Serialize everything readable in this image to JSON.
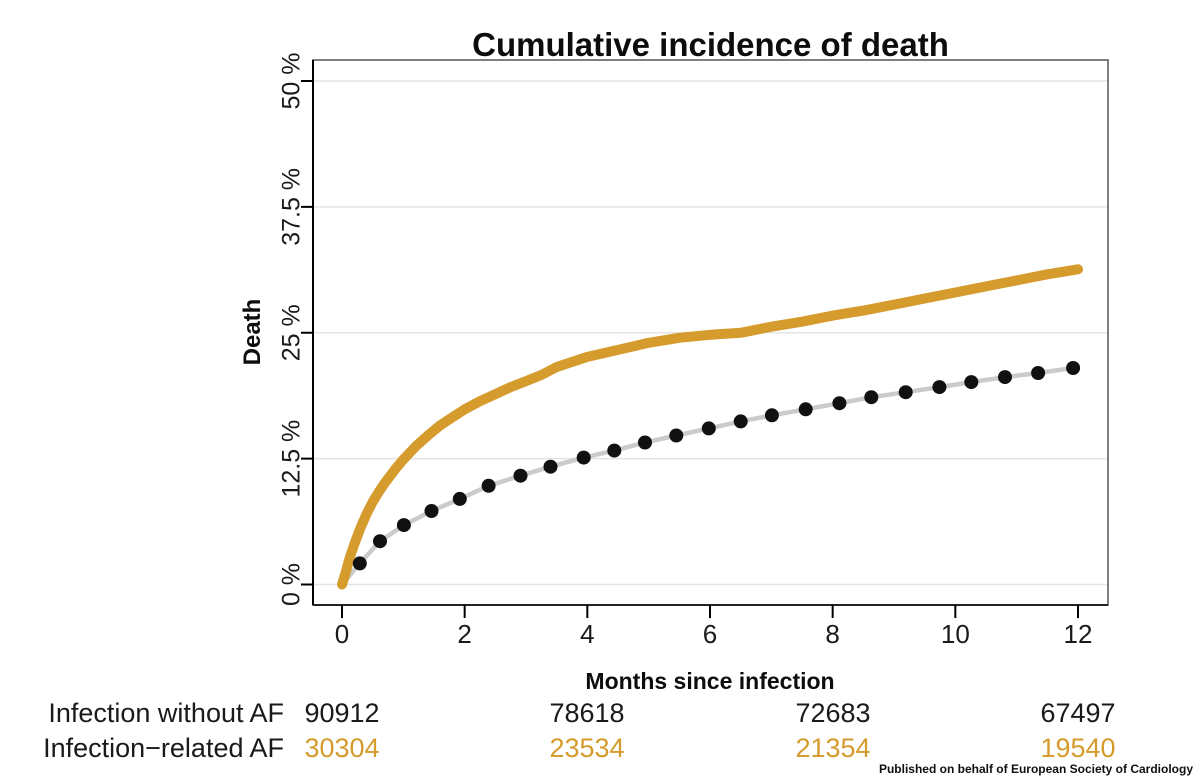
{
  "footer_note": "Published on behalf of European Society of Cardiology",
  "colors": {
    "af_orange": "#D59B2D",
    "no_af_black": "#111111",
    "connector_gray": "#cbcbcb",
    "grid_gray": "#e4e4e4",
    "box_gray": "#555555",
    "axis_black": "#000000",
    "text_dark": "#1a1a1a"
  },
  "chart_data": {
    "type": "line",
    "title": "Cumulative incidence of death",
    "xlabel": "Months since infection",
    "ylabel": "Death",
    "xlim": [
      0,
      12
    ],
    "ylim": [
      0,
      50
    ],
    "y_unit": "%",
    "grid": "horizontal-only",
    "legend_position": "none",
    "xticks": [
      0,
      2,
      4,
      6,
      8,
      10,
      12
    ],
    "yticks": [
      {
        "value": 0,
        "label": "0 %"
      },
      {
        "value": 12.5,
        "label": "12.5 %"
      },
      {
        "value": 25,
        "label": "25 %"
      },
      {
        "value": 37.5,
        "label": "37.5 %"
      },
      {
        "value": 50,
        "label": "50 %"
      }
    ],
    "series": [
      {
        "name": "Infection-related AF",
        "style": "thick-solid-line",
        "color": "#D59B2D",
        "points": [
          [
            0,
            0
          ],
          [
            0.05,
            1.0
          ],
          [
            0.1,
            2.1
          ],
          [
            0.15,
            3.1
          ],
          [
            0.2,
            4.0
          ],
          [
            0.3,
            5.6
          ],
          [
            0.4,
            7.0
          ],
          [
            0.5,
            8.2
          ],
          [
            0.6,
            9.2
          ],
          [
            0.7,
            10.1
          ],
          [
            0.8,
            10.9
          ],
          [
            0.9,
            11.7
          ],
          [
            1.0,
            12.4
          ],
          [
            1.2,
            13.7
          ],
          [
            1.4,
            14.8
          ],
          [
            1.6,
            15.8
          ],
          [
            1.8,
            16.6
          ],
          [
            2.0,
            17.4
          ],
          [
            2.25,
            18.2
          ],
          [
            2.5,
            18.9
          ],
          [
            2.75,
            19.6
          ],
          [
            3.0,
            20.2
          ],
          [
            3.25,
            20.8
          ],
          [
            3.5,
            21.6
          ],
          [
            4.0,
            22.6
          ],
          [
            4.5,
            23.3
          ],
          [
            5.0,
            24.0
          ],
          [
            5.5,
            24.5
          ],
          [
            6.0,
            24.8
          ],
          [
            6.5,
            25.0
          ],
          [
            7.0,
            25.6
          ],
          [
            7.5,
            26.1
          ],
          [
            8.0,
            26.7
          ],
          [
            8.5,
            27.2
          ],
          [
            9.0,
            27.8
          ],
          [
            9.5,
            28.4
          ],
          [
            10.0,
            29.0
          ],
          [
            10.5,
            29.6
          ],
          [
            11.0,
            30.2
          ],
          [
            11.5,
            30.8
          ],
          [
            12.0,
            31.3
          ]
        ]
      },
      {
        "name": "Infection without AF",
        "style": "dots-with-gray-connector",
        "color": "#111111",
        "line_color": "#cbcbcb",
        "points": [
          [
            0,
            0
          ],
          [
            0.29,
            2.1
          ],
          [
            0.62,
            4.3
          ],
          [
            1.01,
            5.9
          ],
          [
            1.46,
            7.3
          ],
          [
            1.92,
            8.5
          ],
          [
            2.39,
            9.8
          ],
          [
            2.91,
            10.8
          ],
          [
            3.4,
            11.7
          ],
          [
            3.94,
            12.6
          ],
          [
            4.44,
            13.3
          ],
          [
            4.94,
            14.1
          ],
          [
            5.45,
            14.8
          ],
          [
            5.98,
            15.5
          ],
          [
            6.5,
            16.2
          ],
          [
            7.01,
            16.8
          ],
          [
            7.56,
            17.4
          ],
          [
            8.11,
            18.0
          ],
          [
            8.63,
            18.6
          ],
          [
            9.19,
            19.1
          ],
          [
            9.74,
            19.6
          ],
          [
            10.26,
            20.1
          ],
          [
            10.81,
            20.6
          ],
          [
            11.35,
            21.0
          ],
          [
            11.92,
            21.5
          ]
        ]
      }
    ],
    "number_at_risk": {
      "months": [
        0,
        4,
        8,
        12
      ],
      "rows": [
        {
          "label": "Infection without AF",
          "color": "#1a1a1a",
          "values": [
            "90912",
            "78618",
            "72683",
            "67497"
          ]
        },
        {
          "label": "Infection−related AF",
          "color": "#D59B2D",
          "values": [
            "30304",
            "23534",
            "21354",
            "19540"
          ]
        }
      ]
    }
  }
}
